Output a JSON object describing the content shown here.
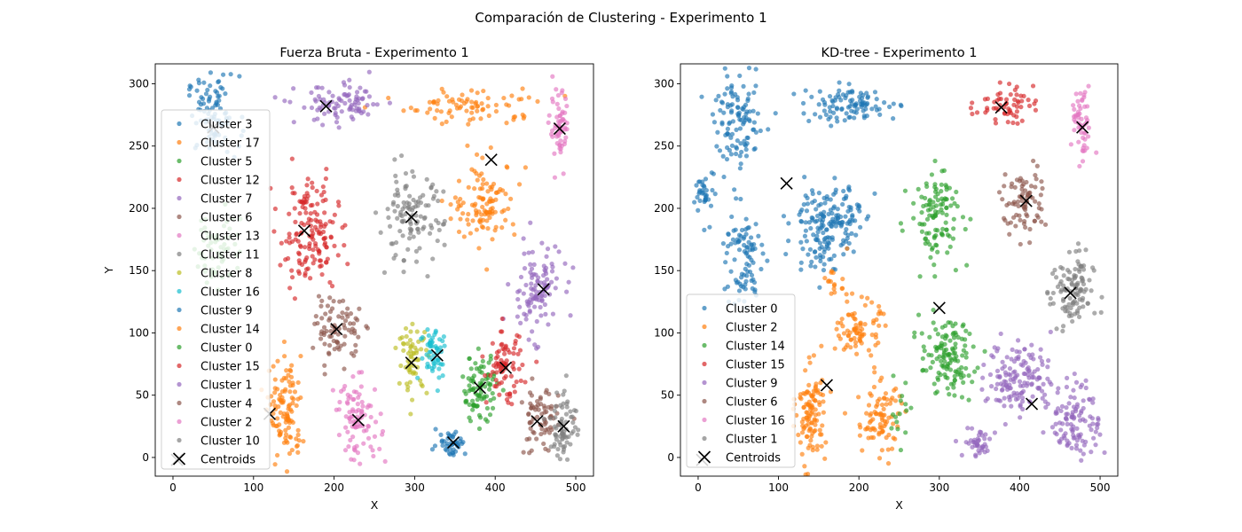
{
  "figure": {
    "suptitle": "Comparación de Clustering - Experimento 1"
  },
  "chart_data": [
    {
      "type": "scatter",
      "title": "Fuerza Bruta - Experimento 1",
      "xlabel": "X",
      "ylabel": "Y",
      "xlim": [
        -22,
        522
      ],
      "ylim": [
        -15,
        316
      ],
      "xticks": [
        0,
        100,
        200,
        300,
        400,
        500
      ],
      "yticks": [
        0,
        50,
        100,
        150,
        200,
        250,
        300
      ],
      "legend_position": "upper-left",
      "series": [
        {
          "name": "Cluster 3",
          "color": "#1f77b4",
          "blobs": [
            {
              "cx": 50,
              "cy": 275,
              "sx": 16,
              "sy": 16,
              "n": 90
            }
          ]
        },
        {
          "name": "Cluster 17",
          "color": "#ff7f0e",
          "blobs": [
            {
              "cx": 375,
              "cy": 282,
              "sx": 42,
              "sy": 7,
              "n": 80
            }
          ]
        },
        {
          "name": "Cluster 5",
          "color": "#2ca02c",
          "blobs": [
            {
              "cx": 55,
              "cy": 170,
              "sx": 14,
              "sy": 18,
              "n": 60
            }
          ]
        },
        {
          "name": "Cluster 12",
          "color": "#d62728",
          "blobs": [
            {
              "cx": 170,
              "cy": 180,
              "sx": 18,
              "sy": 22,
              "n": 150
            }
          ]
        },
        {
          "name": "Cluster 7",
          "color": "#9467bd",
          "blobs": [
            {
              "cx": 450,
              "cy": 135,
              "sx": 16,
              "sy": 18,
              "n": 110
            }
          ]
        },
        {
          "name": "Cluster 6",
          "color": "#8c564b",
          "blobs": [
            {
              "cx": 205,
              "cy": 103,
              "sx": 14,
              "sy": 12,
              "n": 80
            }
          ]
        },
        {
          "name": "Cluster 13",
          "color": "#e377c2",
          "blobs": [
            {
              "cx": 480,
              "cy": 263,
              "sx": 6,
              "sy": 15,
              "n": 60
            }
          ]
        },
        {
          "name": "Cluster 11",
          "color": "#7f7f7f",
          "blobs": [
            {
              "cx": 295,
              "cy": 192,
              "sx": 20,
              "sy": 18,
              "n": 110
            }
          ]
        },
        {
          "name": "Cluster 8",
          "color": "#bcbd22",
          "blobs": [
            {
              "cx": 298,
              "cy": 78,
              "sx": 9,
              "sy": 13,
              "n": 60
            }
          ]
        },
        {
          "name": "Cluster 16",
          "color": "#17becf",
          "blobs": [
            {
              "cx": 325,
              "cy": 85,
              "sx": 9,
              "sy": 12,
              "n": 55
            }
          ]
        },
        {
          "name": "Cluster 9",
          "color": "#1f77b4",
          "blobs": [
            {
              "cx": 345,
              "cy": 12,
              "sx": 9,
              "sy": 5,
              "n": 45
            }
          ]
        },
        {
          "name": "Cluster 14",
          "color": "#ff7f0e",
          "blobs": [
            {
              "cx": 388,
              "cy": 205,
              "sx": 20,
              "sy": 16,
              "n": 110
            },
            {
              "cx": 140,
              "cy": 35,
              "sx": 10,
              "sy": 22,
              "n": 110
            }
          ]
        },
        {
          "name": "Cluster 0",
          "color": "#2ca02c",
          "blobs": [
            {
              "cx": 380,
              "cy": 55,
              "sx": 11,
              "sy": 13,
              "n": 90
            }
          ]
        },
        {
          "name": "Cluster 15",
          "color": "#d62728",
          "blobs": [
            {
              "cx": 412,
              "cy": 72,
              "sx": 11,
              "sy": 14,
              "n": 80
            }
          ]
        },
        {
          "name": "Cluster 1",
          "color": "#9467bd",
          "blobs": [
            {
              "cx": 210,
              "cy": 283,
              "sx": 28,
              "sy": 8,
              "n": 90
            }
          ]
        },
        {
          "name": "Cluster 4",
          "color": "#8c564b",
          "blobs": [
            {
              "cx": 455,
              "cy": 30,
              "sx": 12,
              "sy": 14,
              "n": 70
            }
          ]
        },
        {
          "name": "Cluster 2",
          "color": "#e377c2",
          "blobs": [
            {
              "cx": 230,
              "cy": 30,
              "sx": 14,
              "sy": 16,
              "n": 90
            }
          ]
        },
        {
          "name": "Cluster 10",
          "color": "#7f7f7f",
          "blobs": [
            {
              "cx": 485,
              "cy": 27,
              "sx": 8,
              "sy": 15,
              "n": 70
            }
          ]
        }
      ],
      "centroids": {
        "name": "Centroids",
        "x": [
          50,
          190,
          395,
          480,
          163,
          296,
          460,
          203,
          296,
          328,
          348,
          381,
          413,
          452,
          485,
          230,
          120,
          5
        ],
        "y": [
          265,
          282,
          239,
          264,
          182,
          193,
          135,
          103,
          76,
          82,
          12,
          56,
          72,
          29,
          25,
          30,
          35,
          -2
        ]
      }
    },
    {
      "type": "scatter",
      "title": "KD-tree - Experimento 1",
      "xlabel": "X",
      "ylabel": "",
      "xlim": [
        -22,
        522
      ],
      "ylim": [
        -15,
        316
      ],
      "xticks": [
        0,
        100,
        200,
        300,
        400,
        500
      ],
      "yticks": [
        0,
        50,
        100,
        150,
        200,
        250,
        300
      ],
      "legend_position": "lower-left",
      "series": [
        {
          "name": "Cluster 0",
          "color": "#1f77b4",
          "blobs": [
            {
              "cx": 50,
              "cy": 268,
              "sx": 15,
              "sy": 18,
              "n": 110
            },
            {
              "cx": 190,
              "cy": 283,
              "sx": 30,
              "sy": 7,
              "n": 100
            },
            {
              "cx": 150,
              "cy": 185,
              "sx": 16,
              "sy": 17,
              "n": 120
            },
            {
              "cx": 180,
              "cy": 195,
              "sx": 12,
              "sy": 14,
              "n": 60
            },
            {
              "cx": 55,
              "cy": 158,
              "sx": 12,
              "sy": 22,
              "n": 90
            },
            {
              "cx": 10,
              "cy": 210,
              "sx": 7,
              "sy": 10,
              "n": 35
            }
          ]
        },
        {
          "name": "Cluster 2",
          "color": "#ff7f0e",
          "blobs": [
            {
              "cx": 200,
              "cy": 103,
              "sx": 13,
              "sy": 11,
              "n": 80
            },
            {
              "cx": 140,
              "cy": 35,
              "sx": 9,
              "sy": 20,
              "n": 110
            },
            {
              "cx": 225,
              "cy": 30,
              "sx": 14,
              "sy": 15,
              "n": 85
            },
            {
              "cx": 170,
              "cy": 142,
              "sx": 8,
              "sy": 6,
              "n": 15
            }
          ]
        },
        {
          "name": "Cluster 14",
          "color": "#2ca02c",
          "blobs": [
            {
              "cx": 297,
              "cy": 195,
              "sx": 16,
              "sy": 18,
              "n": 110
            },
            {
              "cx": 310,
              "cy": 80,
              "sx": 17,
              "sy": 15,
              "n": 130
            },
            {
              "cx": 250,
              "cy": 40,
              "sx": 6,
              "sy": 15,
              "n": 15
            }
          ]
        },
        {
          "name": "Cluster 15",
          "color": "#d62728",
          "blobs": [
            {
              "cx": 380,
              "cy": 283,
              "sx": 18,
              "sy": 7,
              "n": 60
            }
          ]
        },
        {
          "name": "Cluster 9",
          "color": "#9467bd",
          "blobs": [
            {
              "cx": 400,
              "cy": 65,
              "sx": 20,
              "sy": 15,
              "n": 140
            },
            {
              "cx": 470,
              "cy": 30,
              "sx": 15,
              "sy": 15,
              "n": 110
            },
            {
              "cx": 350,
              "cy": 12,
              "sx": 10,
              "sy": 6,
              "n": 40
            }
          ]
        },
        {
          "name": "Cluster 6",
          "color": "#8c564b",
          "blobs": [
            {
              "cx": 405,
              "cy": 205,
              "sx": 14,
              "sy": 14,
              "n": 80
            }
          ]
        },
        {
          "name": "Cluster 16",
          "color": "#e377c2",
          "blobs": [
            {
              "cx": 477,
              "cy": 265,
              "sx": 6,
              "sy": 15,
              "n": 55
            }
          ]
        },
        {
          "name": "Cluster 1",
          "color": "#7f7f7f",
          "blobs": [
            {
              "cx": 465,
              "cy": 133,
              "sx": 13,
              "sy": 16,
              "n": 110
            }
          ]
        }
      ],
      "centroids": {
        "name": "Centroids",
        "x": [
          110,
          377,
          478,
          408,
          463,
          300,
          160,
          415,
          5
        ],
        "y": [
          220,
          281,
          265,
          206,
          132,
          120,
          58,
          43,
          -2
        ]
      }
    }
  ]
}
